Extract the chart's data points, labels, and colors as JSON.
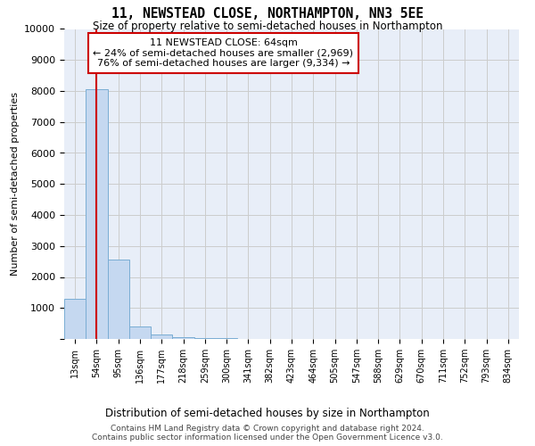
{
  "title": "11, NEWSTEAD CLOSE, NORTHAMPTON, NN3 5EE",
  "subtitle": "Size of property relative to semi-detached houses in Northampton",
  "xlabel": "Distribution of semi-detached houses by size in Northampton",
  "ylabel": "Number of semi-detached properties",
  "bar_color": "#c5d8f0",
  "bar_edge_color": "#7aadd4",
  "bin_labels": [
    "13sqm",
    "54sqm",
    "95sqm",
    "136sqm",
    "177sqm",
    "218sqm",
    "259sqm",
    "300sqm",
    "341sqm",
    "382sqm",
    "423sqm",
    "464sqm",
    "505sqm",
    "547sqm",
    "588sqm",
    "629sqm",
    "670sqm",
    "711sqm",
    "752sqm",
    "793sqm",
    "834sqm"
  ],
  "bar_heights": [
    1300,
    8050,
    2550,
    400,
    130,
    70,
    30,
    15,
    8,
    5,
    3,
    2,
    1,
    1,
    1,
    0,
    0,
    0,
    0,
    0,
    0
  ],
  "ylim": [
    0,
    10000
  ],
  "yticks": [
    0,
    1000,
    2000,
    3000,
    4000,
    5000,
    6000,
    7000,
    8000,
    9000,
    10000
  ],
  "property_line_x": 1.0,
  "annotation_text": "11 NEWSTEAD CLOSE: 64sqm\n← 24% of semi-detached houses are smaller (2,969)\n76% of semi-detached houses are larger (9,334) →",
  "annotation_box_color": "#ffffff",
  "annotation_edge_color": "#cc0000",
  "vline_color": "#cc0000",
  "grid_color": "#cccccc",
  "background_color": "#e8eef8",
  "footer_line1": "Contains HM Land Registry data © Crown copyright and database right 2024.",
  "footer_line2": "Contains public sector information licensed under the Open Government Licence v3.0."
}
